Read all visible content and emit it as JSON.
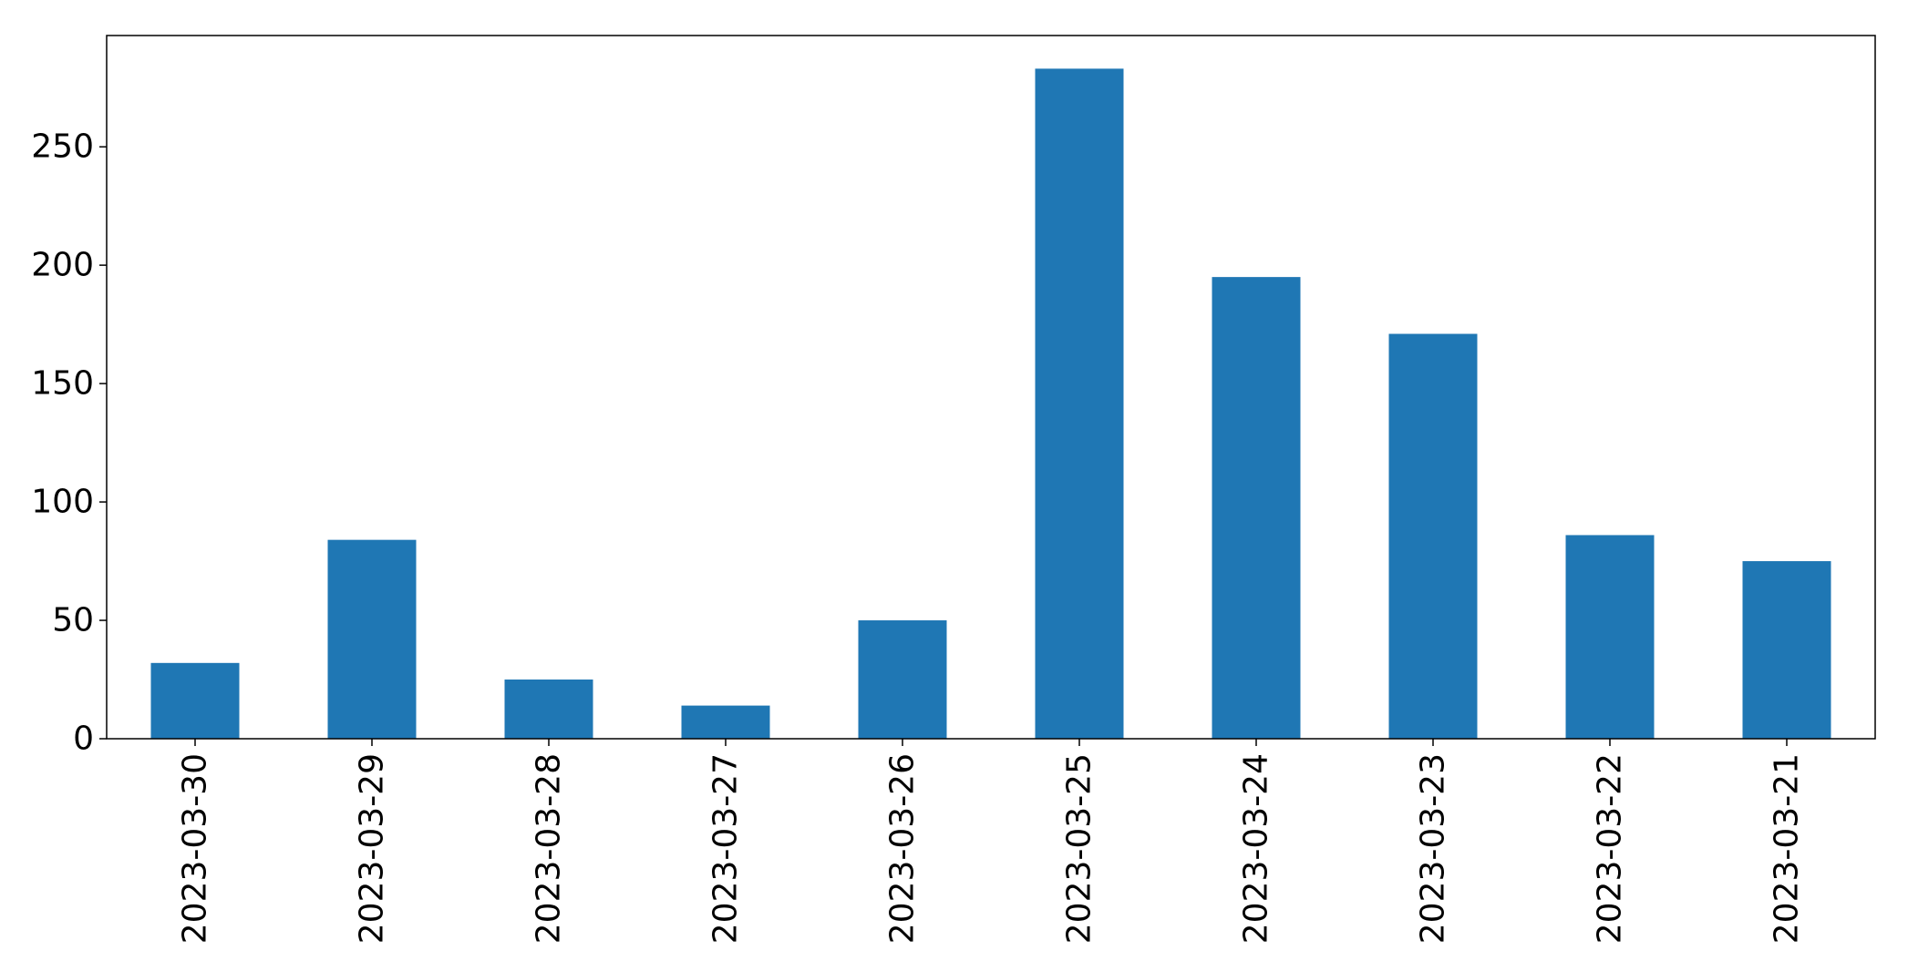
{
  "chart_data": {
    "type": "bar",
    "title": "",
    "xlabel": "",
    "ylabel": "",
    "categories": [
      "2023-03-30",
      "2023-03-29",
      "2023-03-28",
      "2023-03-27",
      "2023-03-26",
      "2023-03-25",
      "2023-03-24",
      "2023-03-23",
      "2023-03-22",
      "2023-03-21"
    ],
    "values": [
      32,
      84,
      25,
      14,
      50,
      283,
      195,
      171,
      86,
      75
    ],
    "ylim": [
      0,
      297
    ],
    "yticks": [
      0,
      50,
      100,
      150,
      200,
      250
    ],
    "grid": false,
    "legend": "none",
    "colors": {
      "bar": "#1f77b4",
      "axis": "#000000"
    }
  }
}
